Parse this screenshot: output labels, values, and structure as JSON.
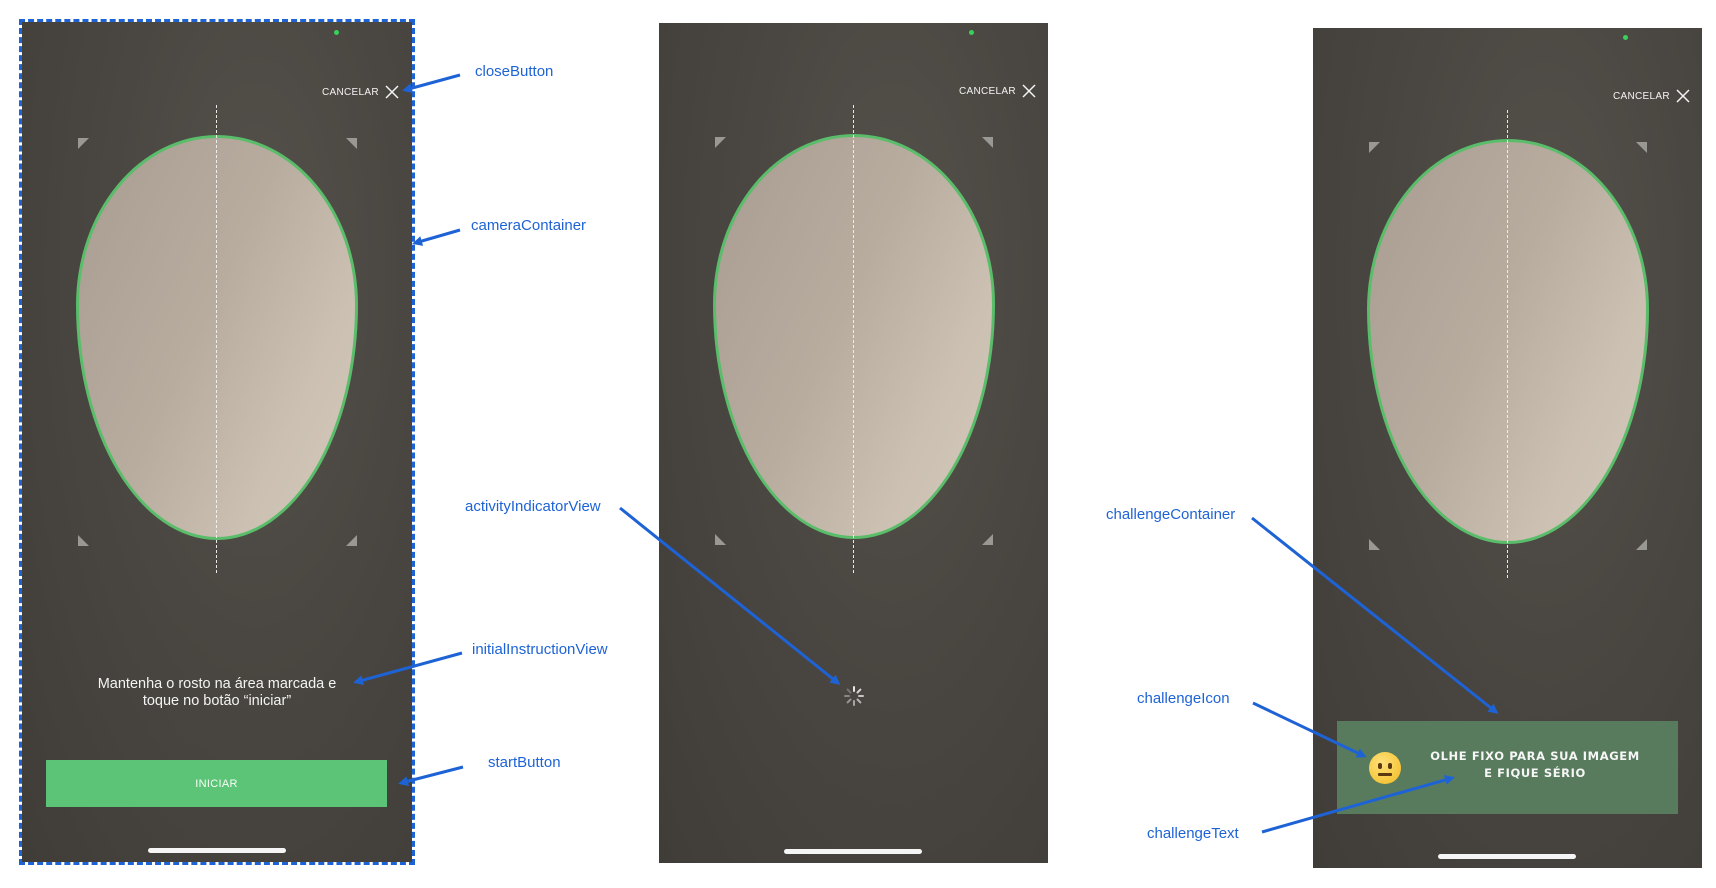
{
  "screens": [
    {
      "cancel_label": "CANCELAR",
      "instruction_text": "Mantenha o rosto na área marcada e toque no botão “iniciar”",
      "start_label": "INICIAR"
    },
    {
      "cancel_label": "CANCELAR"
    },
    {
      "cancel_label": "CANCELAR",
      "challenge_text": "OLHE FIXO PARA SUA IMAGEM E FIQUE SÉRIO",
      "challenge_icon": "neutral-face-icon"
    }
  ],
  "annotations": {
    "close_button": "closeButton",
    "camera_container": "cameraContainer",
    "initial_instruction_view": "initialInstructionView",
    "start_button": "startButton",
    "activity_indicator_view": "activityIndicatorView",
    "challenge_container": "challengeContainer",
    "challenge_icon": "challengeIcon",
    "challenge_text": "challengeText"
  },
  "colors": {
    "annotation": "#1e63d6",
    "accent_green": "#5cc477",
    "oval_border": "#59bd6a",
    "challenge_bg": "#587b5d",
    "camera_bg": "#4a4641"
  }
}
